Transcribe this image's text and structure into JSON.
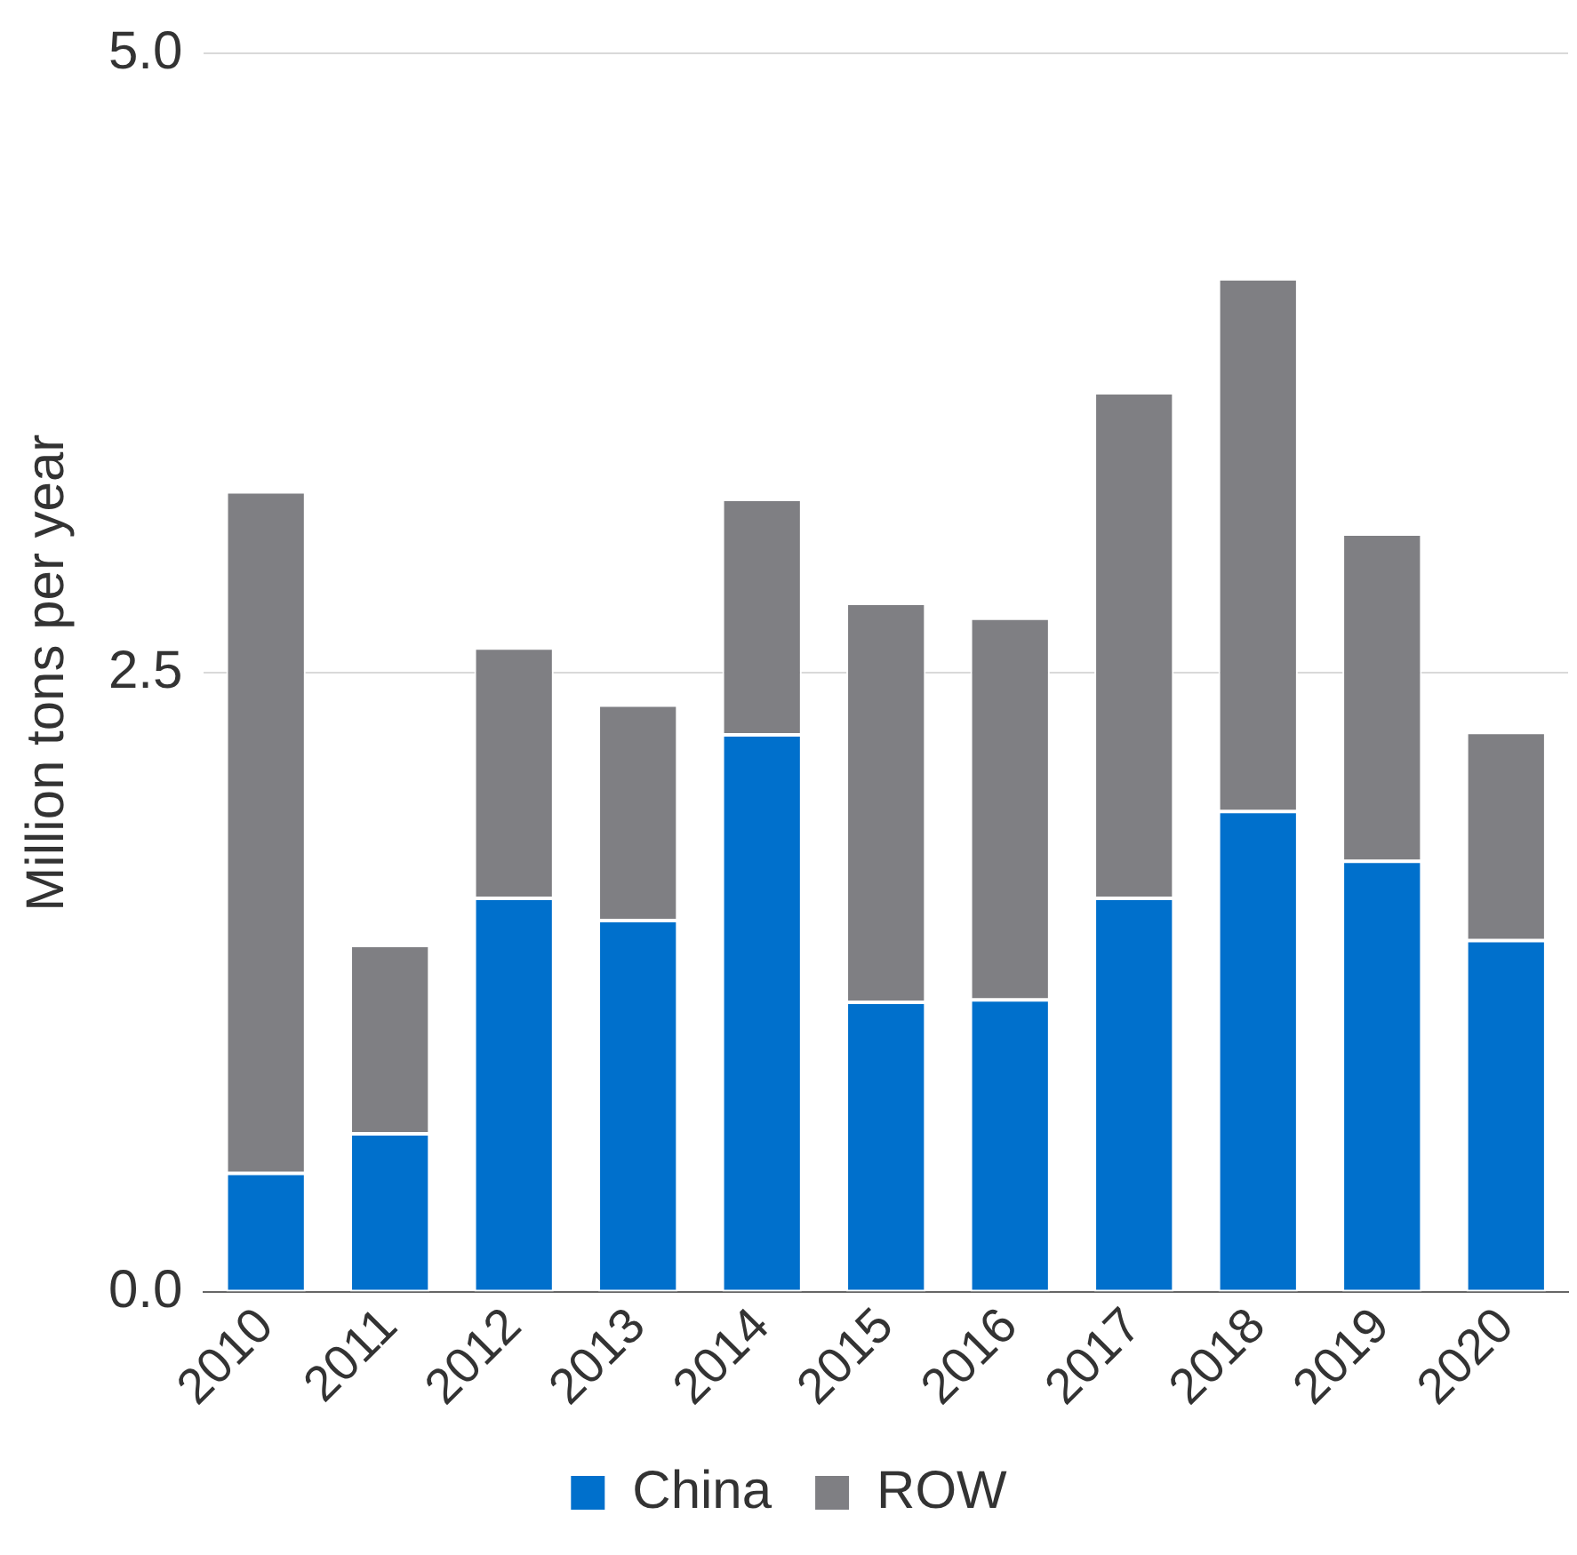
{
  "chart_data": {
    "type": "bar",
    "ylabel": "Million tons per year",
    "categories": [
      "2010",
      "2011",
      "2012",
      "2013",
      "2014",
      "2015",
      "2016",
      "2017",
      "2018",
      "2019",
      "2020"
    ],
    "series": [
      {
        "name": "China",
        "color": "#0070cc",
        "values": [
          0.48,
          0.64,
          1.59,
          1.5,
          2.25,
          1.17,
          1.18,
          1.59,
          1.94,
          1.74,
          1.42
        ]
      },
      {
        "name": "ROW",
        "color": "#7f7f83",
        "values": [
          2.75,
          0.76,
          1.01,
          0.87,
          0.95,
          1.61,
          1.54,
          2.04,
          2.15,
          1.32,
          0.84
        ]
      }
    ],
    "stacked": true,
    "ylim": [
      0,
      5
    ],
    "yticks": [
      {
        "value": 0,
        "label": "0.0"
      },
      {
        "value": 2.5,
        "label": "2.5"
      },
      {
        "value": 5,
        "label": "5.0"
      }
    ],
    "grid": "y",
    "legend": "bottom"
  }
}
